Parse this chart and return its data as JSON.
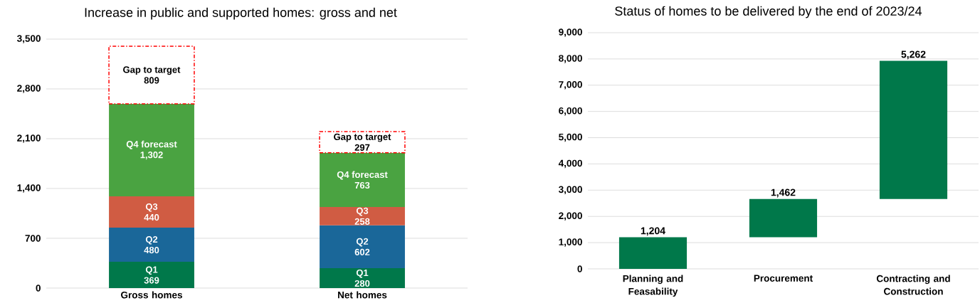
{
  "chart_data": [
    {
      "type": "bar",
      "title": "Increase in public and supported homes: gross and net",
      "categories": [
        "Gross homes",
        "Net homes"
      ],
      "stacked": true,
      "series": [
        {
          "name": "Q1",
          "color": "#00784a",
          "values": [
            369,
            280
          ],
          "value_labels": [
            "369",
            "280"
          ]
        },
        {
          "name": "Q2",
          "color": "#1a6799",
          "values": [
            480,
            602
          ],
          "value_labels": [
            "480",
            "602"
          ]
        },
        {
          "name": "Q3",
          "color": "#d05c43",
          "values": [
            440,
            258
          ],
          "value_labels": [
            "440",
            "258"
          ]
        },
        {
          "name": "Q4 forecast",
          "color": "#4aa341",
          "values": [
            1302,
            763
          ],
          "value_labels": [
            "1,302",
            "763"
          ]
        },
        {
          "name": "Gap to target",
          "color": "#ff0000",
          "line_style": "dashed",
          "values": [
            809,
            297
          ],
          "value_labels": [
            "809",
            "297"
          ]
        }
      ],
      "ylim": [
        0,
        3500
      ],
      "yticks": [
        0,
        700,
        {
          "value": 1400,
          "label": "1,400"
        },
        {
          "value": 2100,
          "label": "2,100"
        },
        {
          "value": 2800,
          "label": "2,800"
        },
        {
          "value": 3500,
          "label": "3,500"
        }
      ],
      "grid": "y"
    },
    {
      "type": "bar",
      "title": "Status of homes to be delivered by the end of 2023/24",
      "categories": [
        "Planning and Feasability",
        "Procurement",
        "Contracting and Construction"
      ],
      "values": [
        1204,
        1462,
        5262
      ],
      "base": [
        0,
        1204,
        2666
      ],
      "value_labels": [
        "1,204",
        "1,462",
        "5,262"
      ],
      "color": "#00784a",
      "ylim": [
        0,
        9000
      ],
      "yticks": [
        0,
        {
          "value": 1000,
          "label": "1,000"
        },
        {
          "value": 2000,
          "label": "2,000"
        },
        {
          "value": 3000,
          "label": "3,000"
        },
        {
          "value": 4000,
          "label": "4,000"
        },
        {
          "value": 5000,
          "label": "5,000"
        },
        {
          "value": 6000,
          "label": "6,000"
        },
        {
          "value": 7000,
          "label": "7,000"
        },
        {
          "value": 8000,
          "label": "8,000"
        },
        {
          "value": 9000,
          "label": "9,000"
        }
      ],
      "grid": "y"
    }
  ]
}
